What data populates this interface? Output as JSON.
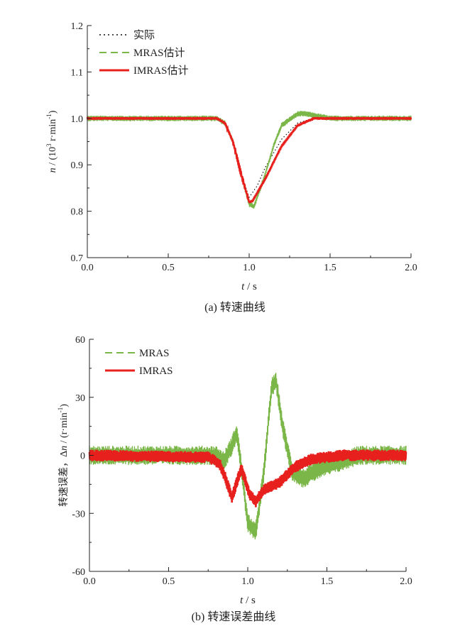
{
  "colors": {
    "actual": "#111111",
    "mras": "#7ab648",
    "imras": "#e8201d",
    "axis": "#222222"
  },
  "chart_data": [
    {
      "type": "line",
      "caption": "(a)  转速曲线",
      "xlabel_italic": "t",
      "xlabel_rest": " / s",
      "ylabel_italic": "n",
      "ylabel_rest": " / (10",
      "ylabel_sup1": "3",
      "ylabel_mid": " r·min",
      "ylabel_sup2": "-1",
      "ylabel_end": ")",
      "xlim": [
        0,
        2.0
      ],
      "ylim": [
        0.7,
        1.2
      ],
      "xticks": [
        "0.0",
        "0.5",
        "1.0",
        "1.5",
        "2.0"
      ],
      "yticks": [
        "0.7",
        "0.8",
        "0.9",
        "1.0",
        "1.1",
        "1.2"
      ],
      "legend_position": "top-left",
      "series": [
        {
          "name": "实际",
          "style": "dotted",
          "points": [
            [
              0,
              1.0
            ],
            [
              0.8,
              1.0
            ],
            [
              0.85,
              0.993
            ],
            [
              0.9,
              0.95
            ],
            [
              0.95,
              0.88
            ],
            [
              1.0,
              0.83
            ],
            [
              1.05,
              0.855
            ],
            [
              1.1,
              0.895
            ],
            [
              1.2,
              0.955
            ],
            [
              1.3,
              0.99
            ],
            [
              1.4,
              1.0
            ],
            [
              2.0,
              1.0
            ]
          ]
        },
        {
          "name": "MRAS估计",
          "style": "dashed",
          "noise": 0.006,
          "points": [
            [
              0,
              1.0
            ],
            [
              0.8,
              1.0
            ],
            [
              0.85,
              0.99
            ],
            [
              0.9,
              0.95
            ],
            [
              0.95,
              0.88
            ],
            [
              1.0,
              0.815
            ],
            [
              1.03,
              0.81
            ],
            [
              1.1,
              0.88
            ],
            [
              1.15,
              0.94
            ],
            [
              1.2,
              0.985
            ],
            [
              1.3,
              1.01
            ],
            [
              1.35,
              1.01
            ],
            [
              1.5,
              1.0
            ],
            [
              2.0,
              1.0
            ]
          ]
        },
        {
          "name": "IMRAS估计",
          "style": "solid",
          "noise": 0.003,
          "points": [
            [
              0,
              1.0
            ],
            [
              0.8,
              1.0
            ],
            [
              0.85,
              0.99
            ],
            [
              0.9,
              0.95
            ],
            [
              0.95,
              0.88
            ],
            [
              1.0,
              0.82
            ],
            [
              1.02,
              0.822
            ],
            [
              1.1,
              0.87
            ],
            [
              1.2,
              0.94
            ],
            [
              1.3,
              0.985
            ],
            [
              1.4,
              1.0
            ],
            [
              2.0,
              1.0
            ]
          ]
        }
      ]
    },
    {
      "type": "line",
      "caption": "(b)  转速误差曲线",
      "xlabel_italic": "t",
      "xlabel_rest": " / s",
      "ylabel_pre": "转速误差，Δ",
      "ylabel_italic": "n",
      "ylabel_rest": " / (r·min",
      "ylabel_sup": "-1",
      "ylabel_end": ")",
      "xlim": [
        0,
        2.0
      ],
      "ylim": [
        -60,
        60
      ],
      "xticks": [
        "0.0",
        "0.5",
        "1.0",
        "1.5",
        "2.0"
      ],
      "yticks": [
        "-60",
        "-30",
        "0",
        "30",
        "60"
      ],
      "legend_position": "top-left",
      "series": [
        {
          "name": "MRAS",
          "style": "dashed",
          "noise": 5,
          "points": [
            [
              0,
              0
            ],
            [
              0.8,
              0
            ],
            [
              0.85,
              -3
            ],
            [
              0.9,
              5
            ],
            [
              0.93,
              12
            ],
            [
              0.95,
              0
            ],
            [
              1.0,
              -35
            ],
            [
              1.05,
              -40
            ],
            [
              1.1,
              -10
            ],
            [
              1.15,
              35
            ],
            [
              1.18,
              38
            ],
            [
              1.22,
              15
            ],
            [
              1.28,
              -8
            ],
            [
              1.35,
              -12
            ],
            [
              1.45,
              -7
            ],
            [
              1.6,
              -3
            ],
            [
              1.7,
              0
            ],
            [
              2.0,
              0
            ]
          ]
        },
        {
          "name": "IMRAS",
          "style": "solid",
          "noise": 3,
          "points": [
            [
              0,
              0
            ],
            [
              0.75,
              -1
            ],
            [
              0.82,
              -4
            ],
            [
              0.86,
              -12
            ],
            [
              0.9,
              -22
            ],
            [
              0.93,
              -14
            ],
            [
              0.96,
              -7
            ],
            [
              0.98,
              -12
            ],
            [
              1.01,
              -20
            ],
            [
              1.05,
              -24
            ],
            [
              1.1,
              -18
            ],
            [
              1.2,
              -14
            ],
            [
              1.3,
              -6
            ],
            [
              1.4,
              -2
            ],
            [
              1.5,
              -1
            ],
            [
              1.6,
              0
            ],
            [
              2.0,
              0
            ]
          ]
        }
      ]
    }
  ]
}
